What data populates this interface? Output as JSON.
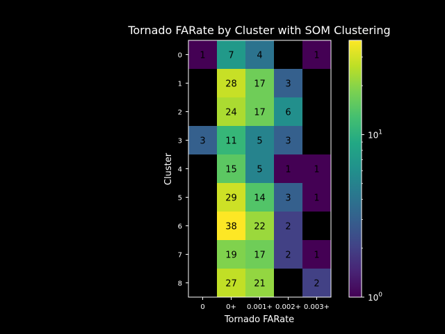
{
  "chart_data": {
    "type": "heatmap",
    "title": "Tornado FARate by Cluster with SOM Clustering",
    "xlabel": "Tornado FARate",
    "ylabel": "Cluster",
    "x_categories": [
      "0",
      "0+",
      "0.001+",
      "0.002+",
      "0.003+"
    ],
    "y_categories": [
      "0",
      "1",
      "2",
      "3",
      "4",
      "5",
      "6",
      "7",
      "8"
    ],
    "values": [
      [
        1,
        7,
        4,
        null,
        1
      ],
      [
        null,
        28,
        17,
        3,
        null
      ],
      [
        null,
        24,
        17,
        6,
        null
      ],
      [
        3,
        11,
        5,
        3,
        null
      ],
      [
        null,
        15,
        5,
        1,
        1
      ],
      [
        null,
        29,
        14,
        3,
        1
      ],
      [
        null,
        38,
        22,
        2,
        null
      ],
      [
        null,
        19,
        17,
        2,
        1
      ],
      [
        null,
        27,
        21,
        null,
        2
      ]
    ],
    "colorbar": {
      "scale": "log",
      "colormap": "viridis",
      "vmin": 1,
      "vmax": 38,
      "tick_labels": [
        {
          "base": "10",
          "exp": "0",
          "value": 1
        },
        {
          "base": "10",
          "exp": "1",
          "value": 10
        }
      ]
    },
    "background": "#000000",
    "text_color": "#ffffff"
  }
}
